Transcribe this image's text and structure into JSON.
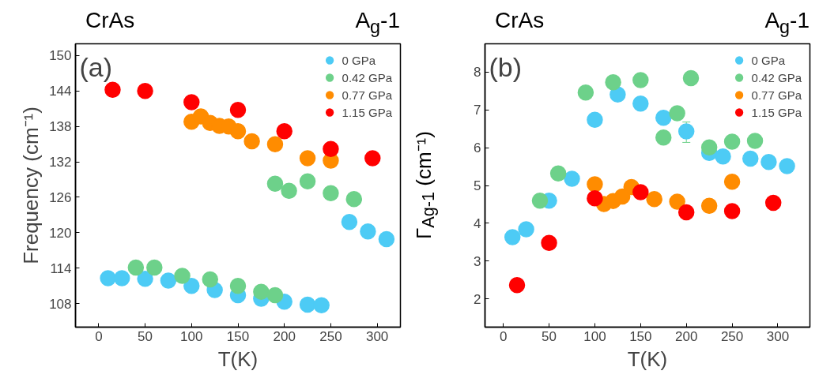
{
  "chart_data": [
    {
      "type": "scatter",
      "title": "CrAs",
      "subtitle": "A$_{g}$-1",
      "xlabel": "T(K)",
      "ylabel": "Frequency (cm⁻¹)",
      "annotations": [
        "(a)"
      ],
      "xlim": [
        -25,
        325
      ],
      "ylim": [
        104,
        152
      ],
      "xticks": [
        0,
        50,
        100,
        150,
        200,
        250,
        300
      ],
      "yticks": [
        108,
        114,
        120,
        126,
        132,
        138,
        144,
        150
      ],
      "grid": false,
      "legend": "top right",
      "marker": "circle",
      "series": [
        {
          "name": "0 GPa",
          "color": "#4dcbf5",
          "x": [
            10,
            25,
            50,
            75,
            100,
            125,
            150,
            175,
            200,
            225,
            240,
            270,
            290,
            310
          ],
          "values": [
            112.3,
            112.3,
            112.2,
            111.9,
            111.0,
            110.3,
            109.4,
            108.8,
            108.3,
            107.8,
            107.7,
            121.8,
            120.2,
            118.9
          ]
        },
        {
          "name": "0.42 GPa",
          "color": "#6dd18a",
          "x": [
            40,
            60,
            90,
            120,
            150,
            175,
            190,
            190,
            205,
            225,
            250,
            275
          ],
          "values": [
            114.1,
            114.1,
            112.7,
            112.1,
            111.0,
            110.0,
            109.4,
            128.3,
            127.1,
            128.7,
            126.7,
            125.7
          ]
        },
        {
          "name": "0.77 GPa",
          "color": "#ff8c00",
          "x": [
            100,
            110,
            120,
            130,
            140,
            150,
            165,
            190,
            225,
            250
          ],
          "values": [
            138.8,
            139.7,
            138.6,
            138.1,
            138.0,
            137.2,
            135.5,
            135.0,
            132.6,
            132.2
          ]
        },
        {
          "name": "1.15 GPa",
          "color": "#ff0000",
          "x": [
            15,
            50,
            100,
            150,
            200,
            250,
            295
          ],
          "values": [
            144.2,
            144.0,
            142.1,
            140.8,
            137.2,
            134.2,
            132.6
          ]
        }
      ]
    },
    {
      "type": "scatter",
      "title": "CrAs",
      "subtitle": "A$_{g}$-1",
      "xlabel": "T(K)",
      "ylabel": "Γ$_{Ag-1}$ (cm⁻¹)",
      "annotations": [
        "(b)"
      ],
      "xlim": [
        -20,
        335
      ],
      "ylim": [
        1.25,
        8.75
      ],
      "xticks": [
        0,
        50,
        100,
        150,
        200,
        250,
        300
      ],
      "yticks": [
        2,
        3,
        4,
        5,
        6,
        7,
        8
      ],
      "grid": false,
      "legend": "top right",
      "marker": "circle",
      "series": [
        {
          "name": "0 GPa",
          "color": "#4dcbf5",
          "x": [
            10,
            25,
            50,
            75,
            100,
            125,
            150,
            175,
            200,
            225,
            240,
            270,
            290,
            310
          ],
          "values": [
            3.63,
            3.84,
            4.6,
            5.18,
            6.74,
            7.41,
            7.17,
            6.79,
            6.43,
            5.86,
            5.77,
            5.71,
            5.62,
            5.51
          ],
          "errors": [
            null,
            null,
            null,
            null,
            null,
            null,
            null,
            null,
            [
              6.14,
              6.68
            ],
            null,
            null,
            null,
            null,
            null
          ]
        },
        {
          "name": "0.42 GPa",
          "color": "#6dd18a",
          "x": [
            40,
            60,
            90,
            120,
            150,
            175,
            190,
            205,
            225,
            250,
            275
          ],
          "values": [
            4.6,
            5.32,
            7.46,
            7.73,
            7.79,
            6.27,
            6.91,
            7.84,
            6.01,
            6.16,
            6.18
          ]
        },
        {
          "name": "0.77 GPa",
          "color": "#ff8c00",
          "x": [
            100,
            110,
            120,
            130,
            140,
            165,
            190,
            225,
            250
          ],
          "values": [
            5.03,
            4.51,
            4.59,
            4.71,
            4.96,
            4.64,
            4.57,
            4.46,
            5.1
          ]
        },
        {
          "name": "1.15 GPa",
          "color": "#ff0000",
          "x": [
            15,
            50,
            100,
            150,
            200,
            250,
            295
          ],
          "values": [
            2.36,
            3.48,
            4.66,
            4.82,
            4.29,
            4.32,
            4.54
          ]
        }
      ]
    }
  ]
}
